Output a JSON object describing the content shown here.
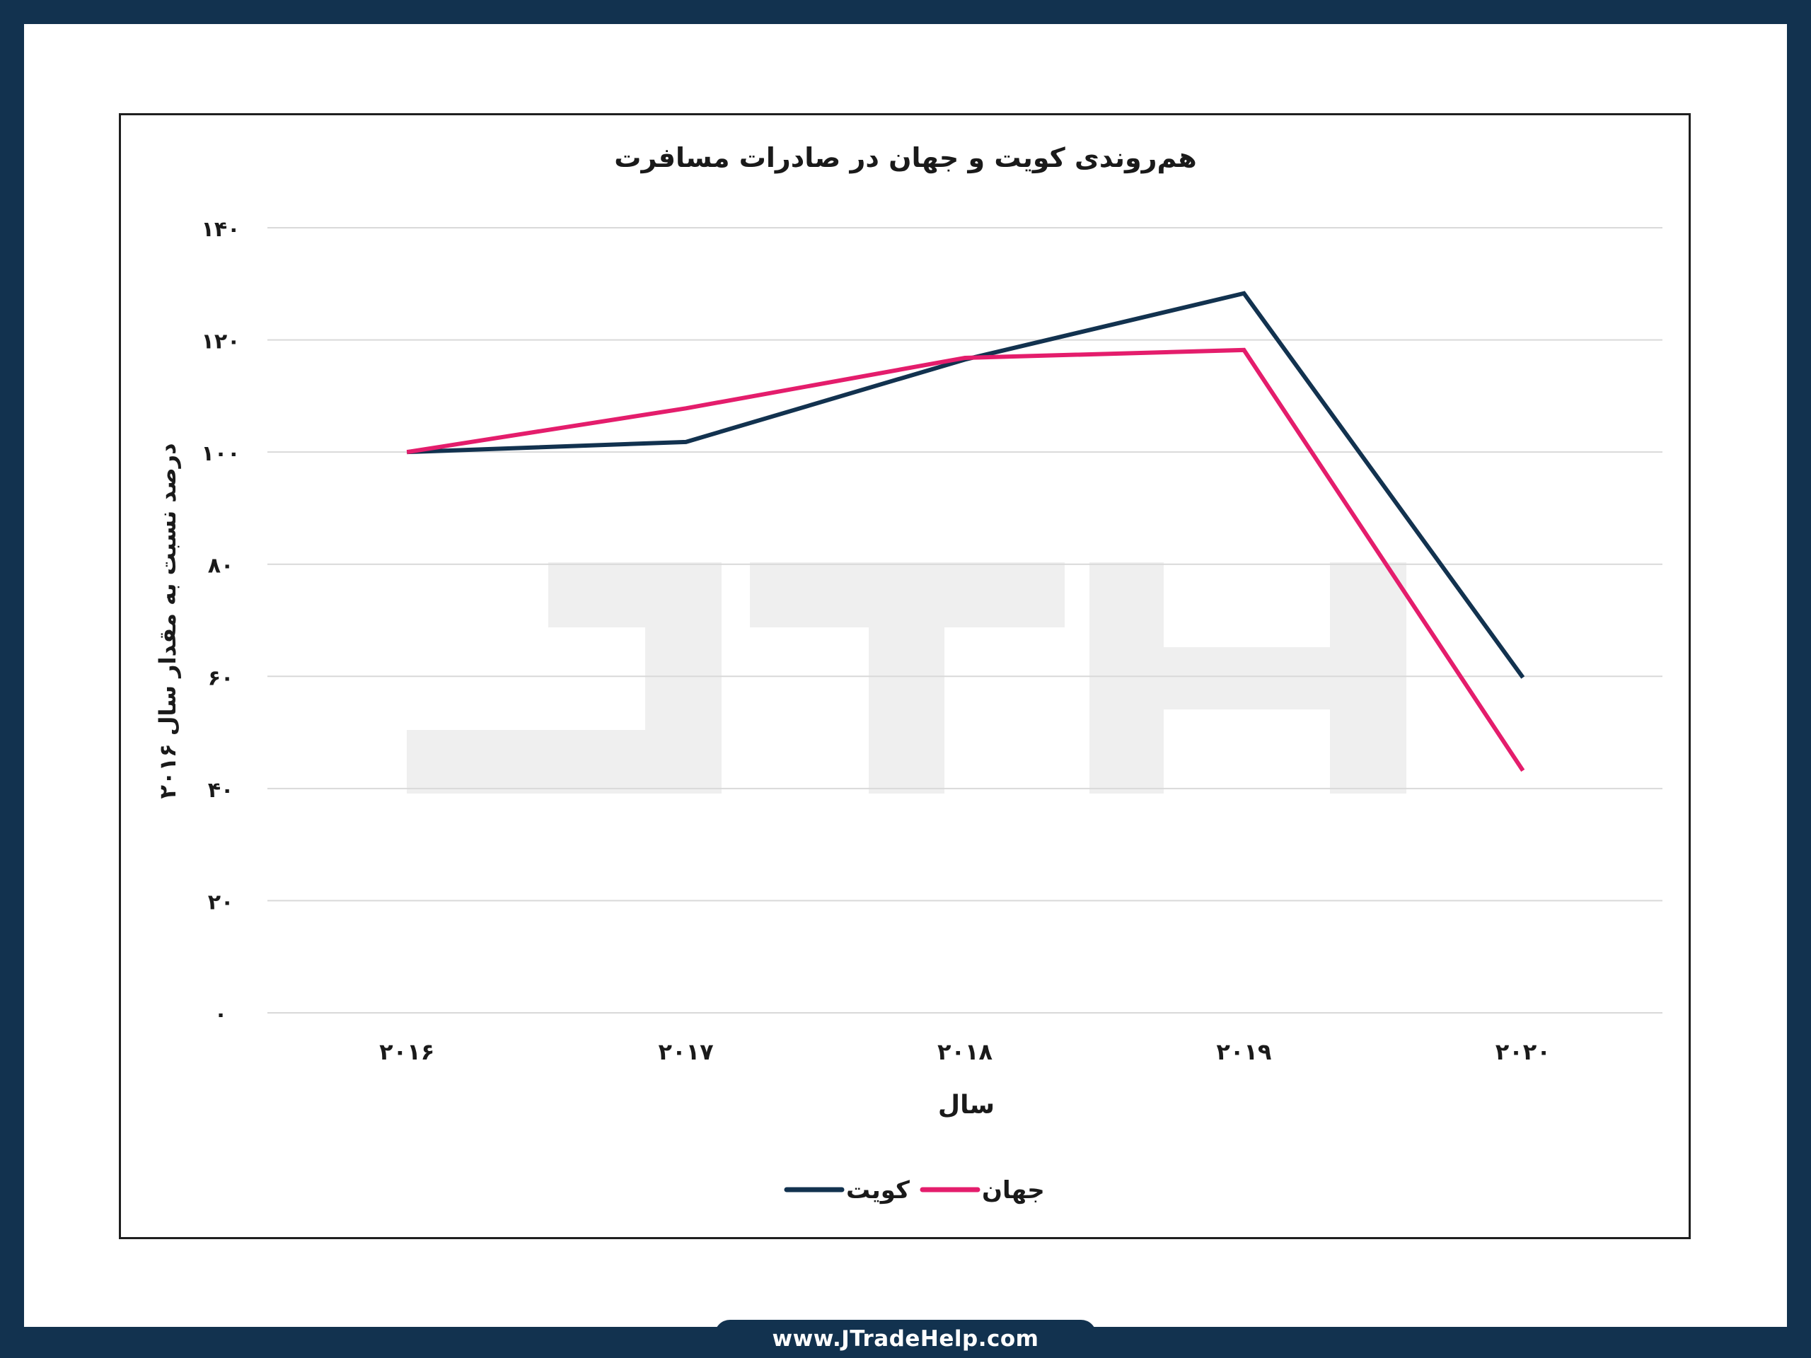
{
  "footer": {
    "url": "www.JTradeHelp.com"
  },
  "colors": {
    "frame": "#12324f",
    "kuwait": "#12324f",
    "world": "#e41d6c",
    "grid": "#d9d9d9",
    "watermark": "#efefef"
  },
  "watermark": {
    "text": "JTH"
  },
  "chart_data": {
    "type": "line",
    "title": "هم‌روندی کویت و جهان در صادرات مسافرت",
    "xlabel": "سال",
    "ylabel": "درصد نسبت به مقدار سال ۲۰۱۶",
    "categories": [
      "۲۰۱۶",
      "۲۰۱۷",
      "۲۰۱۸",
      "۲۰۱۹",
      "۲۰۲۰"
    ],
    "yticks": [
      "۰",
      "۲۰",
      "۴۰",
      "۶۰",
      "۸۰",
      "۱۰۰",
      "۱۲۰",
      "۱۴۰"
    ],
    "ylim": [
      0,
      140
    ],
    "grid": true,
    "legend_position": "bottom",
    "series": [
      {
        "name": "کویت",
        "color": "#12324f",
        "values": [
          100,
          101.8,
          116.5,
          128.3,
          59.8
        ]
      },
      {
        "name": "جهان",
        "color": "#e41d6c",
        "values": [
          100,
          107.8,
          116.8,
          118.2,
          43.2
        ]
      }
    ]
  }
}
